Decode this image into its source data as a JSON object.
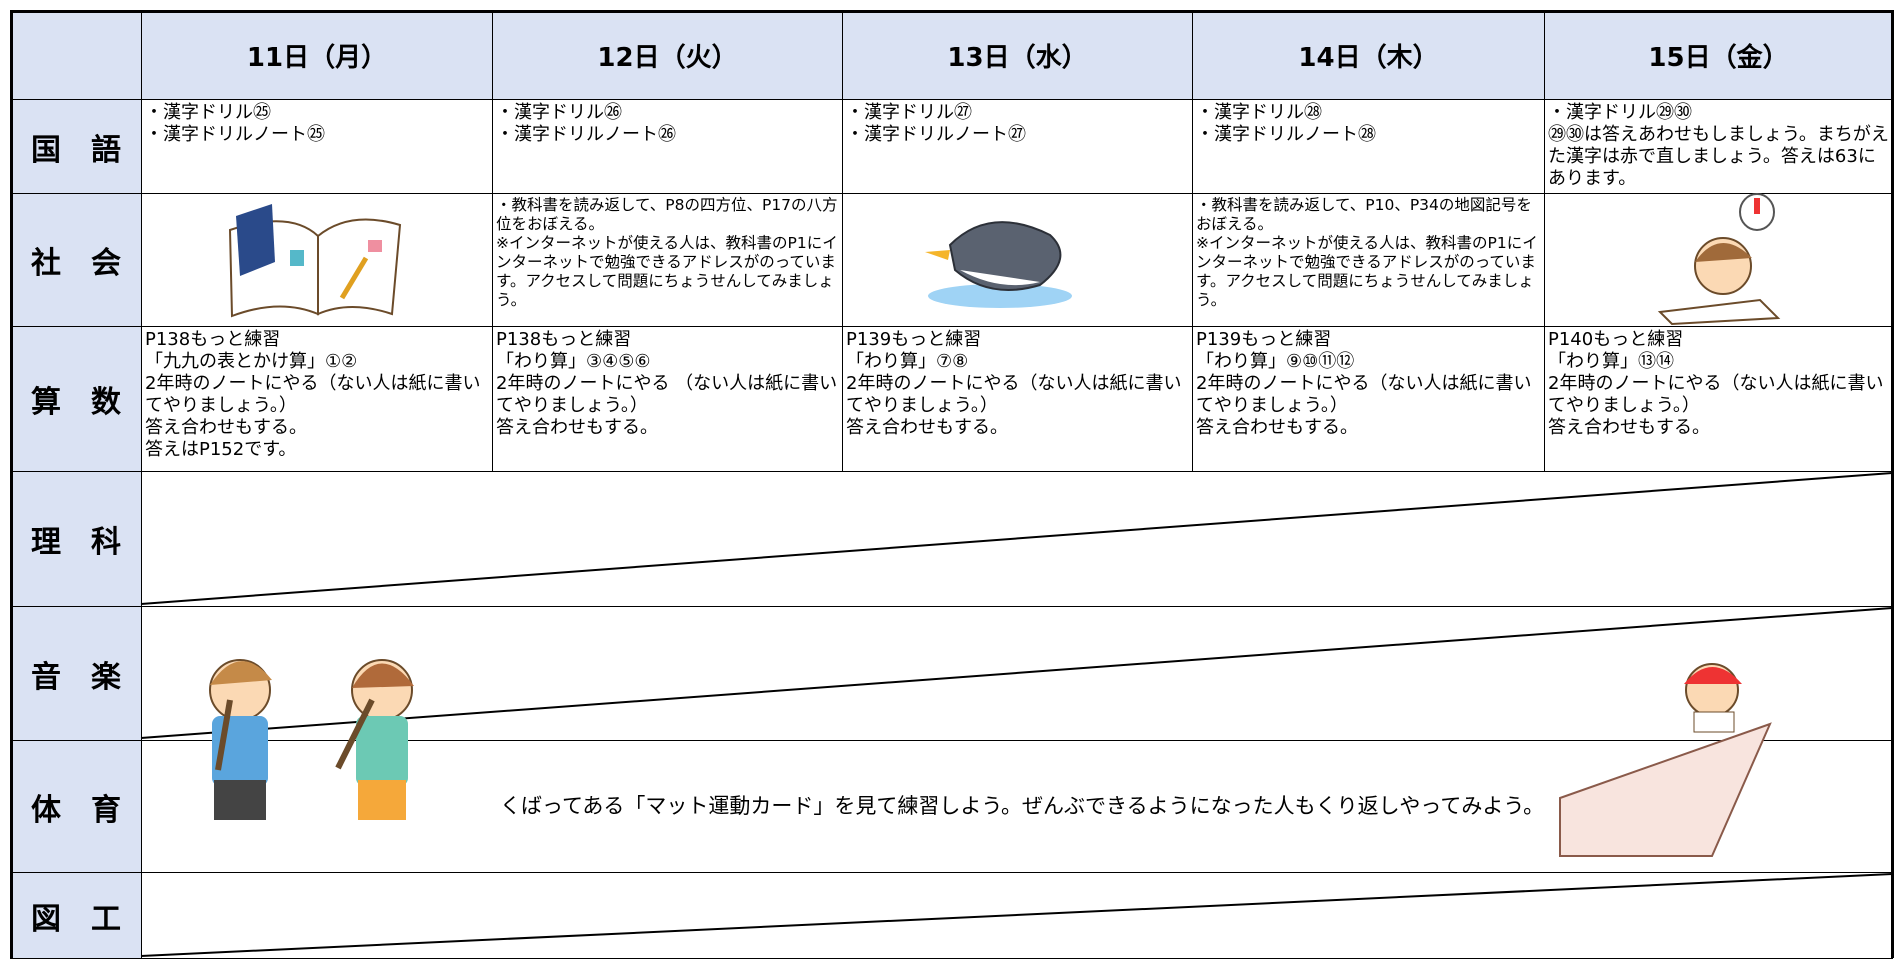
{
  "days": [
    "11日（月）",
    "12日（火）",
    "13日（水）",
    "14日（木）",
    "15日（金）"
  ],
  "rows": [
    {
      "subject": "国　語",
      "cells": [
        [
          "・漢字ドリル㉕",
          "・漢字ドリルノート㉕"
        ],
        [
          "・漢字ドリル㉖",
          "・漢字ドリルノート㉖"
        ],
        [
          "・漢字ドリル㉗",
          "・漢字ドリルノート㉗"
        ],
        [
          "・漢字ドリル㉘",
          "・漢字ドリルノート㉘"
        ],
        [
          "・漢字ドリル㉙㉚",
          "㉙㉚は答えあわせもしましょう。まちがえた漢字は赤で直しましょう。答えは63にあります。"
        ]
      ]
    },
    {
      "subject": "社　会",
      "cells": [
        null,
        [
          "・教科書を読み返して、P8の四方位、P17の八方位をおぼえる。",
          "※インターネットが使える人は、教科書のP1にインターネットで勉強できるアドレスがのっています。アクセスして問題にちょうせんしてみましょう。"
        ],
        null,
        [
          "・教科書を読み返して、P10、P34の地図記号をおぼえる。",
          "※インターネットが使える人は、教科書のP1にインターネットで勉強できるアドレスがのっています。アクセスして問題にちょうせんしてみましょう。"
        ],
        null
      ]
    },
    {
      "subject": "算　数",
      "cells": [
        [
          "P138もっと練習",
          "「九九の表とかけ算」①②",
          "2年時のノートにやる（ない人は紙に書いてやりましょう。）",
          "答え合わせもする。",
          "答えはP152です。"
        ],
        [
          "P138もっと練習",
          "「わり算」③④⑤⑥",
          "2年時のノートにやる （ない人は紙に書いてやりましょう。）",
          "答え合わせもする。"
        ],
        [
          "P139もっと練習",
          "「わり算」⑦⑧",
          "2年時のノートにやる（ない人は紙に書いてやりましょう。）",
          "答え合わせもする。"
        ],
        [
          "P139もっと練習",
          "「わり算」⑨⑩⑪⑫",
          "2年時のノートにやる（ない人は紙に書いてやりましょう。）",
          "答え合わせもする。"
        ],
        [
          "P140もっと練習",
          "「わり算」⑬⑭",
          "2年時のノートにやる（ない人は紙に書いてやりましょう。）",
          "答え合わせもする。"
        ]
      ]
    },
    {
      "subject": "理　科"
    },
    {
      "subject": "音　楽"
    },
    {
      "subject": "体　育",
      "note": "くばってある「マット運動カード」を見て練習しよう。ぜんぶできるようになった人もくり返しやってみよう。"
    },
    {
      "subject": "図　工"
    }
  ]
}
